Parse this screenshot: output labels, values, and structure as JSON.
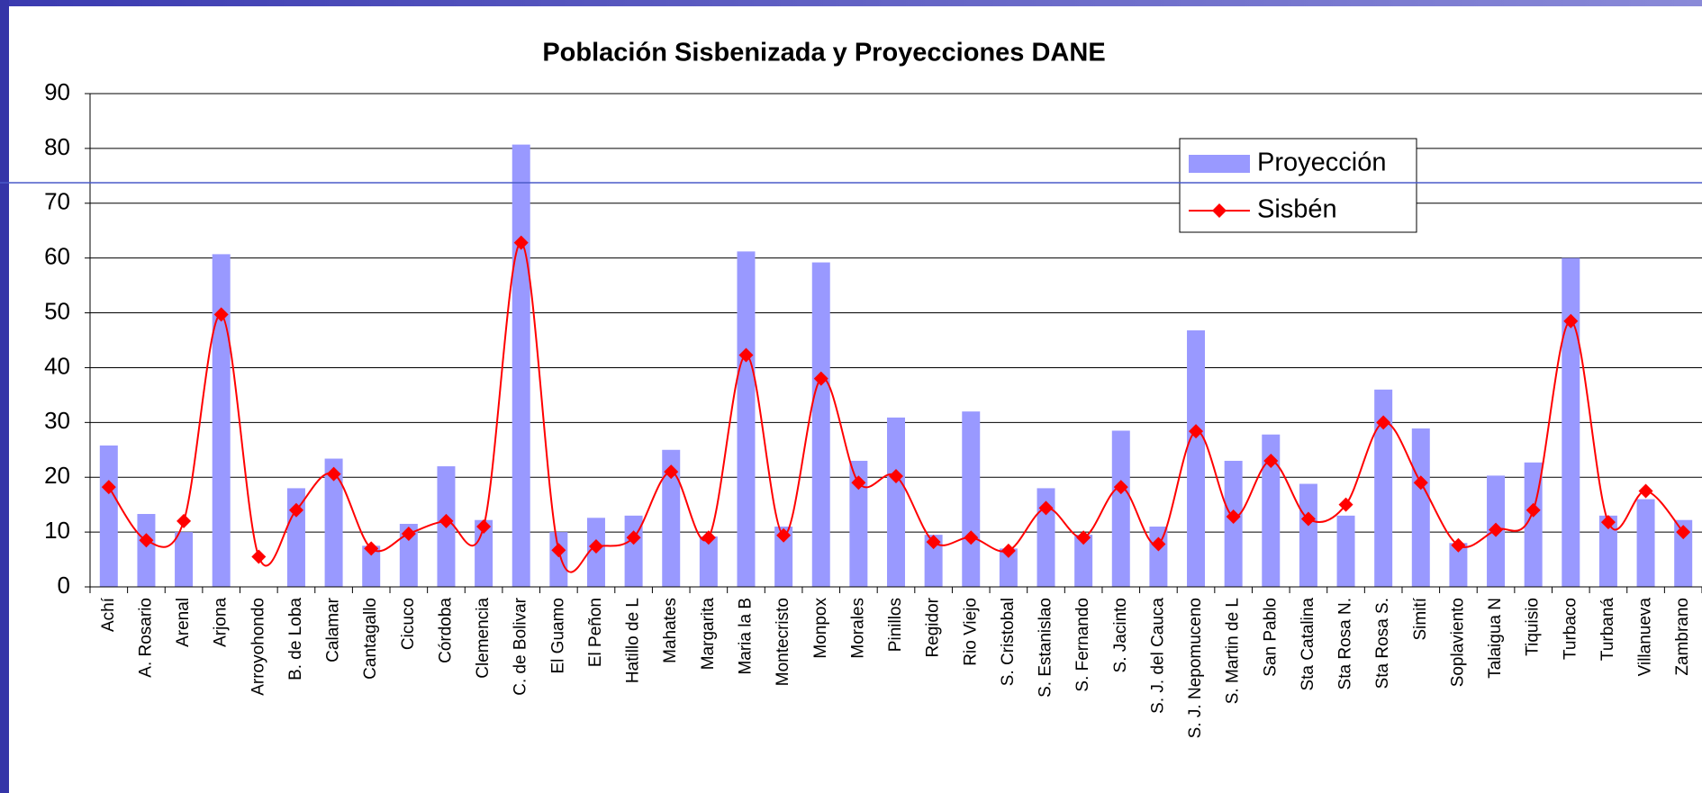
{
  "chart_data": {
    "type": "bar_line",
    "title": "Población Sisbenizada y Proyecciones DANE",
    "categories": [
      "Achí",
      "A. Rosario",
      "Arenal",
      "Arjona",
      "Arroyohondo",
      "B. de Loba",
      "Calamar",
      "Cantagallo",
      "Cicuco",
      "Córdoba",
      "Clemencia",
      "C. de Bolivar",
      "El Guamo",
      "El Peñon",
      "Hatillo de L",
      "Mahates",
      "Margarita",
      "Maria la B",
      "Montecristo",
      "Monpox",
      "Morales",
      "Pinillos",
      "Regidor",
      "Rio Viejo",
      "S. Cristobal",
      "S. Estanislao",
      "S. Fernando",
      "S. Jacinto",
      "S. J. del Cauca",
      "S. J. Nepomuceno",
      "S. Martin de L",
      "San Pablo",
      "Sta Catalina",
      "Sta Rosa N.",
      "Sta Rosa S.",
      "Simití",
      "Soplaviento",
      "Talaigua N",
      "Tiquisio",
      "Turbaco",
      "Turbaná",
      "Villanueva",
      "Zambrano"
    ],
    "series": [
      {
        "name": "Proyección",
        "type": "bar",
        "color": "#9999ff",
        "values": [
          25.8,
          13.3,
          10,
          60.7,
          null,
          18,
          23.4,
          7.5,
          11.5,
          22,
          12.2,
          80.7,
          10,
          12.6,
          13,
          25,
          9.2,
          61.2,
          11,
          59.2,
          23,
          30.9,
          9.5,
          32,
          7,
          18,
          9.5,
          28.5,
          11,
          46.8,
          23,
          27.8,
          18.8,
          13,
          36,
          28.9,
          8,
          20.3,
          22.7,
          60,
          13,
          16,
          12.2
        ]
      },
      {
        "name": "Sisbén",
        "type": "line",
        "color": "#ff0000",
        "values": [
          18.2,
          8.5,
          12,
          49.7,
          5.5,
          14,
          20.6,
          7,
          9.7,
          12,
          11,
          62.8,
          6.7,
          7.4,
          9,
          21,
          9,
          42.3,
          9.4,
          38,
          19,
          20.2,
          8.2,
          9,
          6.6,
          14.4,
          9,
          18.2,
          7.8,
          28.4,
          12.8,
          23,
          12.4,
          15,
          30,
          19,
          7.6,
          10.4,
          14,
          48.5,
          11.8,
          17.5,
          10
        ]
      }
    ],
    "ylim": [
      0,
      90
    ],
    "yticks": [
      0,
      10,
      20,
      30,
      40,
      50,
      60,
      70,
      80,
      90
    ],
    "grid": true,
    "legend": "upper right"
  }
}
